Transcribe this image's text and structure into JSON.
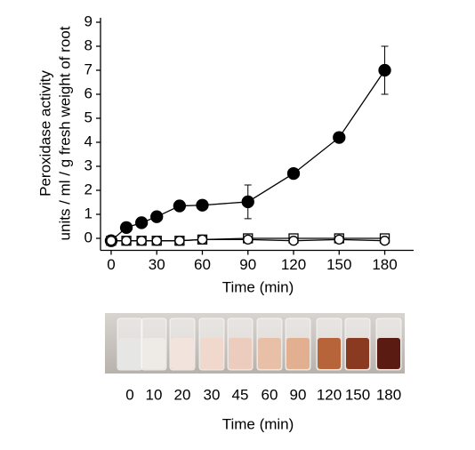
{
  "chart_data": {
    "type": "line",
    "xlabel": "Time (min)",
    "ylabel": [
      "Peroxidase activity",
      "units / ml / g fresh weight of root"
    ],
    "x": [
      0,
      10,
      20,
      30,
      45,
      60,
      90,
      120,
      150,
      180
    ],
    "series": [
      {
        "marker": "filled-circle",
        "color": "#000000",
        "values": [
          -0.1,
          0.45,
          0.65,
          0.9,
          1.35,
          1.38,
          1.52,
          2.7,
          4.2,
          7.0
        ],
        "errors": [
          0.05,
          0.1,
          0.1,
          0.1,
          0.2,
          0.1,
          0.7,
          0.1,
          0.2,
          1.0
        ]
      },
      {
        "marker": "open-square",
        "color": "#000000",
        "values": [
          -0.1,
          -0.1,
          -0.1,
          -0.1,
          -0.1,
          -0.05,
          0,
          0,
          0,
          0
        ]
      },
      {
        "marker": "open-circle",
        "color": "#000000",
        "values": [
          -0.1,
          -0.1,
          -0.1,
          -0.1,
          -0.1,
          -0.05,
          -0.05,
          -0.1,
          -0.05,
          -0.1
        ]
      }
    ],
    "xlim": [
      -7,
      199
    ],
    "ylim": [
      -0.5,
      9
    ],
    "xticks": [
      0,
      30,
      60,
      90,
      120,
      150,
      180
    ],
    "yticks": [
      0,
      1,
      2,
      3,
      4,
      5,
      6,
      7,
      8,
      9
    ]
  },
  "photo": {
    "labels": [
      "0",
      "10",
      "20",
      "30",
      "45",
      "60",
      "90",
      "120",
      "150",
      "180"
    ],
    "xlabel": "Time (min)"
  }
}
